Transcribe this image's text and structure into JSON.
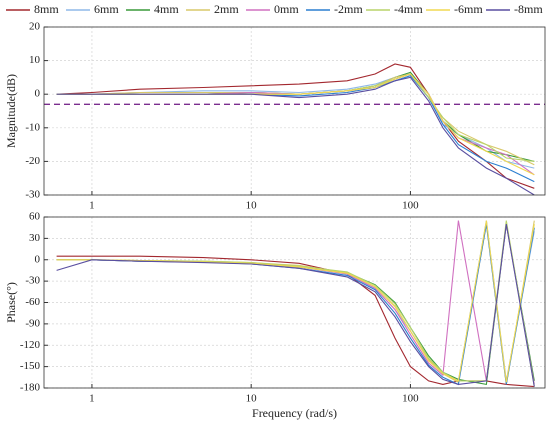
{
  "chart_data": [
    {
      "type": "line",
      "ylabel": "Magnitude(dB)",
      "xscale": "log",
      "grid": true,
      "xlim": [
        0.5,
        700
      ],
      "xticks": [
        1,
        10,
        100
      ],
      "ylim": [
        -30,
        20
      ],
      "yticks": [
        20,
        10,
        0,
        -10,
        -20,
        -30
      ],
      "hline": {
        "value": -3,
        "color": "#7b2d8e"
      },
      "x": [
        0.6,
        1,
        2,
        5,
        10,
        20,
        40,
        60,
        80,
        100,
        130,
        160,
        200,
        300,
        400,
        600
      ],
      "series": [
        {
          "name": "8mm",
          "color": "#a3282f",
          "values": [
            0,
            0.5,
            1.5,
            2,
            2.5,
            3,
            4,
            6,
            9,
            8,
            0,
            -8,
            -14,
            -20,
            -25,
            -28
          ]
        },
        {
          "name": "6mm",
          "color": "#8fb8e8",
          "values": [
            0,
            0,
            0.5,
            1,
            1,
            0.5,
            1.5,
            3,
            5,
            6,
            -1,
            -9,
            -12,
            -16,
            -20,
            -22
          ]
        },
        {
          "name": "4mm",
          "color": "#3a9a3a",
          "values": [
            0,
            0,
            0,
            0,
            0.5,
            0,
            1,
            2.5,
            5,
            6.5,
            0,
            -8,
            -12,
            -17,
            -18,
            -20
          ]
        },
        {
          "name": "2mm",
          "color": "#d8c86a",
          "values": [
            0,
            0,
            0.5,
            0.5,
            0.5,
            0,
            1,
            2.5,
            5,
            6,
            -1,
            -7,
            -11,
            -15,
            -17,
            -21
          ]
        },
        {
          "name": "0mm",
          "color": "#d070c0",
          "values": [
            0,
            0,
            0,
            0,
            0.5,
            0,
            1,
            2,
            4.5,
            6,
            0,
            -8,
            -13,
            -16,
            -18,
            -24
          ]
        },
        {
          "name": "-2mm",
          "color": "#2c7fd0",
          "values": [
            0,
            0,
            0,
            0,
            0,
            -0.5,
            0.5,
            2,
            4,
            5.5,
            -1,
            -9,
            -15,
            -20,
            -22,
            -26
          ]
        },
        {
          "name": "-4mm",
          "color": "#b8d46a",
          "values": [
            0,
            0,
            0,
            0,
            0,
            0,
            1,
            2.5,
            4.5,
            6,
            -1,
            -7,
            -12,
            -15,
            -19,
            -20
          ]
        },
        {
          "name": "-6mm",
          "color": "#f0d850",
          "values": [
            0,
            0,
            0,
            0,
            0,
            0,
            1,
            2,
            4.5,
            6,
            0,
            -8,
            -13,
            -17,
            -20,
            -24
          ]
        },
        {
          "name": "-8mm",
          "color": "#5a4fa0",
          "values": [
            0,
            0,
            0,
            0,
            0,
            -1,
            0,
            1.5,
            4,
            5,
            -2,
            -10,
            -16,
            -22,
            -25,
            -30
          ]
        }
      ]
    },
    {
      "type": "line",
      "ylabel": "Phase(°)",
      "xlabel": "Frequency (rad/s)",
      "xscale": "log",
      "grid": true,
      "xlim": [
        0.5,
        700
      ],
      "xticks": [
        1,
        10,
        100
      ],
      "ylim": [
        -180,
        60
      ],
      "yticks": [
        60,
        30,
        0,
        -30,
        -60,
        -90,
        -120,
        -150,
        -180
      ],
      "x": [
        0.6,
        1,
        2,
        5,
        10,
        20,
        40,
        60,
        80,
        100,
        130,
        160,
        200,
        300,
        400,
        600
      ],
      "series": [
        {
          "color": "#a3282f",
          "values": [
            5,
            5,
            5,
            3,
            0,
            -5,
            -20,
            -50,
            -110,
            -150,
            -170,
            -175,
            -170,
            -170,
            -175,
            -178
          ]
        },
        {
          "color": "#8fb8e8",
          "values": [
            0,
            0,
            -2,
            -3,
            -5,
            -10,
            -20,
            -40,
            -70,
            -100,
            -140,
            -160,
            -170,
            55,
            -170,
            40
          ]
        },
        {
          "color": "#3a9a3a",
          "values": [
            0,
            0,
            -2,
            -3,
            -5,
            -10,
            -18,
            -35,
            -60,
            -95,
            -135,
            -158,
            -168,
            -175,
            50,
            -170
          ]
        },
        {
          "color": "#d8c86a",
          "values": [
            0,
            0,
            -1,
            -2,
            -4,
            -8,
            -18,
            -38,
            -65,
            -100,
            -140,
            -160,
            -172,
            50,
            -175,
            55
          ]
        },
        {
          "color": "#d070c0",
          "values": [
            0,
            0,
            -2,
            -3,
            -5,
            -10,
            -20,
            -40,
            -70,
            -105,
            -145,
            -162,
            55,
            -170,
            50,
            -175
          ]
        },
        {
          "color": "#2c7fd0",
          "values": [
            0,
            0,
            -2,
            -3,
            -6,
            -12,
            -22,
            -42,
            -75,
            -110,
            -148,
            -165,
            -175,
            50,
            -175,
            45
          ]
        },
        {
          "color": "#b8d46a",
          "values": [
            0,
            0,
            -1,
            -2,
            -4,
            -9,
            -17,
            -36,
            -62,
            -95,
            -138,
            -158,
            -170,
            -170,
            55,
            -178
          ]
        },
        {
          "color": "#f0d850",
          "values": [
            0,
            0,
            -1,
            -3,
            -5,
            -10,
            -19,
            -38,
            -66,
            -100,
            -142,
            -160,
            -170,
            55,
            -172,
            50
          ]
        },
        {
          "color": "#5a4fa0",
          "values": [
            -15,
            0,
            -2,
            -4,
            -6,
            -12,
            -24,
            -45,
            -80,
            -115,
            -150,
            -168,
            -175,
            -170,
            50,
            -178
          ]
        }
      ]
    }
  ]
}
